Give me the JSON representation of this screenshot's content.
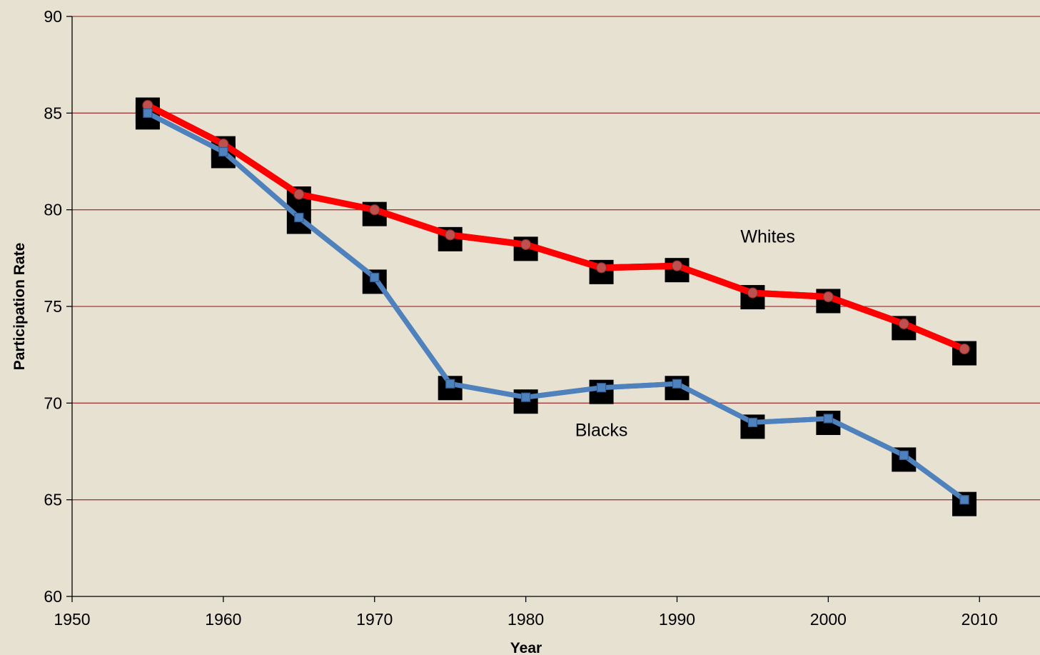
{
  "chart_data": {
    "type": "line",
    "xlabel": "Year",
    "ylabel": "Participation Rate",
    "xlim": [
      1950,
      2014
    ],
    "ylim": [
      60,
      90
    ],
    "x_ticks": [
      1950,
      1960,
      1970,
      1980,
      1990,
      2000,
      2010
    ],
    "y_ticks": [
      60,
      65,
      70,
      75,
      80,
      85,
      90
    ],
    "grid": "horizontal",
    "series": [
      {
        "name": "Whites",
        "color": "#ff0000",
        "marker": "circle",
        "marker_color": "#c0504d",
        "x": [
          1955,
          1960,
          1965,
          1970,
          1975,
          1980,
          1985,
          1990,
          1995,
          2000,
          2005,
          2009
        ],
        "values": [
          85.4,
          83.4,
          80.8,
          80.0,
          78.7,
          78.2,
          77.0,
          77.1,
          75.7,
          75.5,
          74.1,
          72.8
        ]
      },
      {
        "name": "Blacks",
        "color": "#4f81bd",
        "marker": "square",
        "marker_color": "#4f81bd",
        "x": [
          1955,
          1960,
          1965,
          1970,
          1975,
          1980,
          1985,
          1990,
          1995,
          2000,
          2005,
          2009
        ],
        "values": [
          85.0,
          83.0,
          79.6,
          76.5,
          71.0,
          70.3,
          70.8,
          71.0,
          69.0,
          69.2,
          67.3,
          65.0
        ]
      }
    ],
    "annotations": [
      {
        "text": "Whites",
        "x": 1996,
        "y": 78.3
      },
      {
        "text": "Blacks",
        "x": 1985,
        "y": 68.3
      }
    ]
  }
}
